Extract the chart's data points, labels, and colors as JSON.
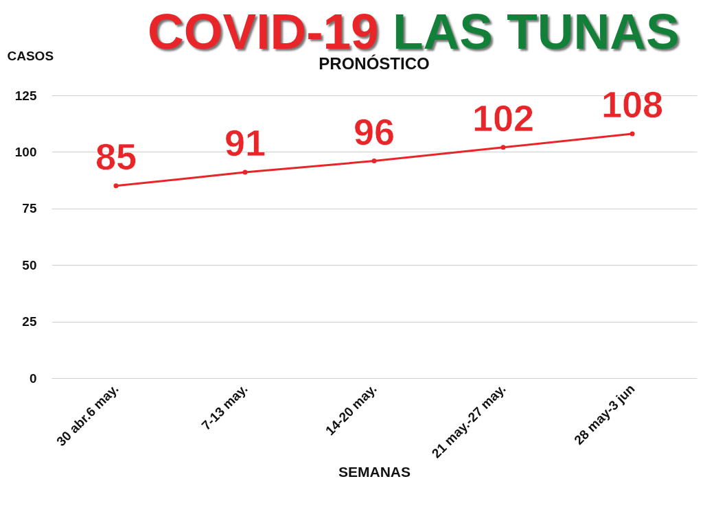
{
  "chart_data": {
    "type": "line",
    "title": "COVID-19 LAS TUNAS",
    "subtitle": "PRONÓSTICO",
    "xlabel": "SEMANAS",
    "ylabel": "CASOS",
    "categories": [
      "30 abr.6 may.",
      "7-13 may.",
      "14-20 may.",
      "21 may.-27 may.",
      "28 may-3 jun"
    ],
    "series": [
      {
        "color": "#e8262a",
        "values": [
          85,
          91,
          96,
          102,
          108
        ]
      }
    ],
    "ylim": [
      0,
      125
    ],
    "yticks": [
      0,
      25,
      50,
      75,
      100,
      125
    ],
    "grid": "y",
    "marker": "circle",
    "data_labels": true,
    "legend": false
  }
}
